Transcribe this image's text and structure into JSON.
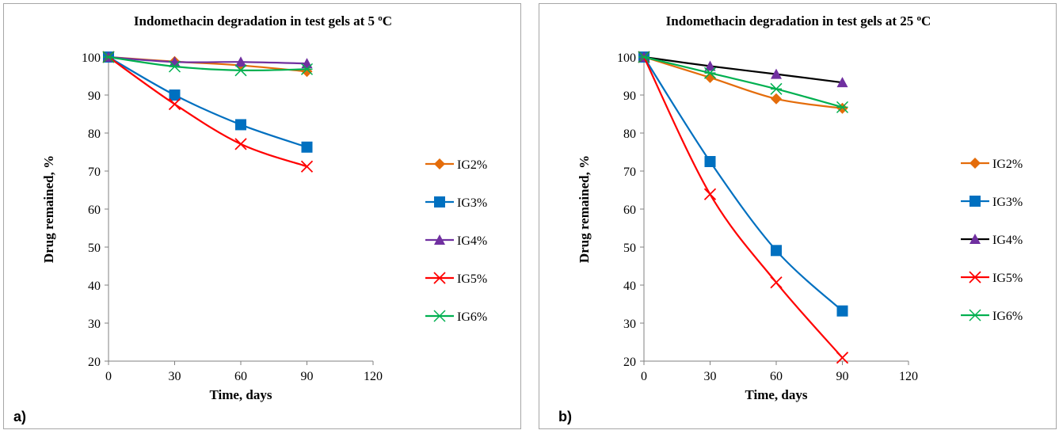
{
  "chart_data": [
    {
      "panel_label": "a)",
      "type": "line",
      "title": "Indomethacin degradation in test gels at 5 ",
      "title_sup": "o",
      "title_suffix": "C",
      "xlabel": "Time, days",
      "ylabel": "Drug remained, %",
      "xlim": [
        0,
        120
      ],
      "ylim": [
        20,
        100
      ],
      "xticks": [
        0,
        30,
        60,
        90,
        120
      ],
      "yticks": [
        20,
        30,
        40,
        50,
        60,
        70,
        80,
        90,
        100
      ],
      "grid": false,
      "legend_position": "right",
      "x": [
        0,
        30,
        60,
        90
      ],
      "series": [
        {
          "name": "IG2%",
          "values": [
            100,
            98.8,
            97.8,
            96.2
          ],
          "color": "#e46c0a",
          "marker": "diamond"
        },
        {
          "name": "IG3%",
          "values": [
            100,
            90.0,
            82.2,
            76.3
          ],
          "color": "#0070c0",
          "marker": "square"
        },
        {
          "name": "IG4%",
          "values": [
            100,
            98.7,
            98.7,
            98.3
          ],
          "color": "#7030a0",
          "marker": "triangle"
        },
        {
          "name": "IG5%",
          "values": [
            100,
            87.6,
            77.1,
            71.2
          ],
          "color": "#ff0000",
          "marker": "x"
        },
        {
          "name": "IG6%",
          "values": [
            100,
            97.5,
            96.5,
            96.8
          ],
          "color": "#00b050",
          "marker": "star"
        }
      ]
    },
    {
      "panel_label": "b)",
      "type": "line",
      "title": "Indomethacin degradation in test gels at 25 ",
      "title_sup": "o",
      "title_suffix": "C",
      "xlabel": "Time, days",
      "ylabel": "Drug remained, %",
      "xlim": [
        0,
        120
      ],
      "ylim": [
        20,
        100
      ],
      "xticks": [
        0,
        30,
        60,
        90,
        120
      ],
      "yticks": [
        20,
        30,
        40,
        50,
        60,
        70,
        80,
        90,
        100
      ],
      "grid": false,
      "legend_position": "right",
      "x": [
        0,
        30,
        60,
        90
      ],
      "series": [
        {
          "name": "IG2%",
          "values": [
            100,
            94.6,
            89.0,
            86.5
          ],
          "color": "#e46c0a",
          "marker": "diamond"
        },
        {
          "name": "IG3%",
          "values": [
            100,
            72.5,
            49.1,
            33.2
          ],
          "color": "#0070c0",
          "marker": "square"
        },
        {
          "name": "IG4%",
          "values": [
            100,
            97.6,
            95.5,
            93.3
          ],
          "color": "#7030a0",
          "line_color": "#000000",
          "marker": "triangle"
        },
        {
          "name": "IG5%",
          "values": [
            100,
            63.9,
            40.7,
            20.9
          ],
          "color": "#ff0000",
          "marker": "x"
        },
        {
          "name": "IG6%",
          "values": [
            100,
            95.8,
            91.6,
            86.8
          ],
          "color": "#00b050",
          "marker": "star"
        }
      ]
    }
  ]
}
